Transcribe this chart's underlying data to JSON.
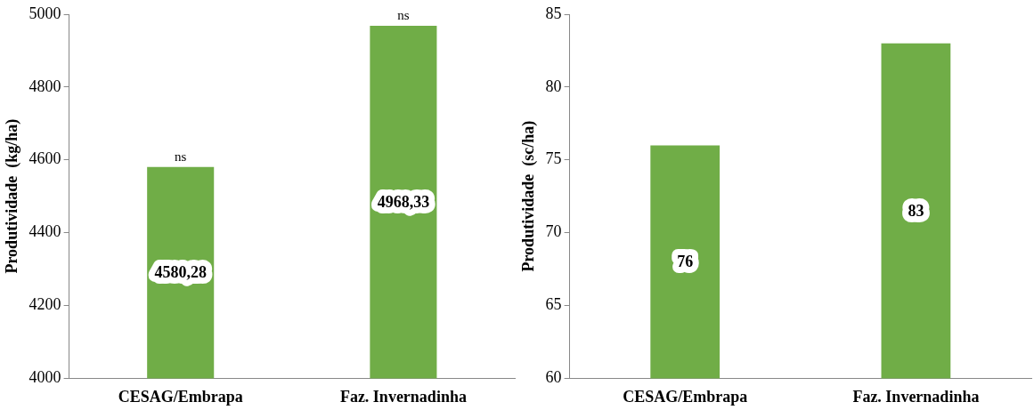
{
  "chart_data": [
    {
      "type": "bar",
      "ylabel": "Produtividade  (kg/ha)",
      "categories": [
        "CESAG/Embrapa",
        "Faz. Invernadinha"
      ],
      "series": [
        {
          "color": "#70ad47",
          "values": [
            4580.28,
            4968.33
          ],
          "value_labels": [
            "4580,28",
            "4968,33"
          ]
        }
      ],
      "ylim": [
        4000,
        5000
      ],
      "yticks": [
        4000,
        4200,
        4400,
        4600,
        4800,
        5000
      ],
      "grid": false,
      "legend": false,
      "annotations": [
        {
          "text": "ns",
          "x": "CESAG/Embrapa",
          "y": 4580.28
        },
        {
          "text": "ns",
          "x": "Faz. Invernadinha",
          "y": 4968.33
        }
      ]
    },
    {
      "type": "bar",
      "ylabel": "Produtividade  (sc/ha)",
      "categories": [
        "CESAG/Embrapa",
        "Faz. Invernadinha"
      ],
      "series": [
        {
          "color": "#70ad47",
          "values": [
            76,
            83
          ],
          "value_labels": [
            "76",
            "83"
          ]
        }
      ],
      "ylim": [
        60,
        85
      ],
      "yticks": [
        60,
        65,
        70,
        75,
        80,
        85
      ],
      "grid": false,
      "legend": false
    }
  ]
}
